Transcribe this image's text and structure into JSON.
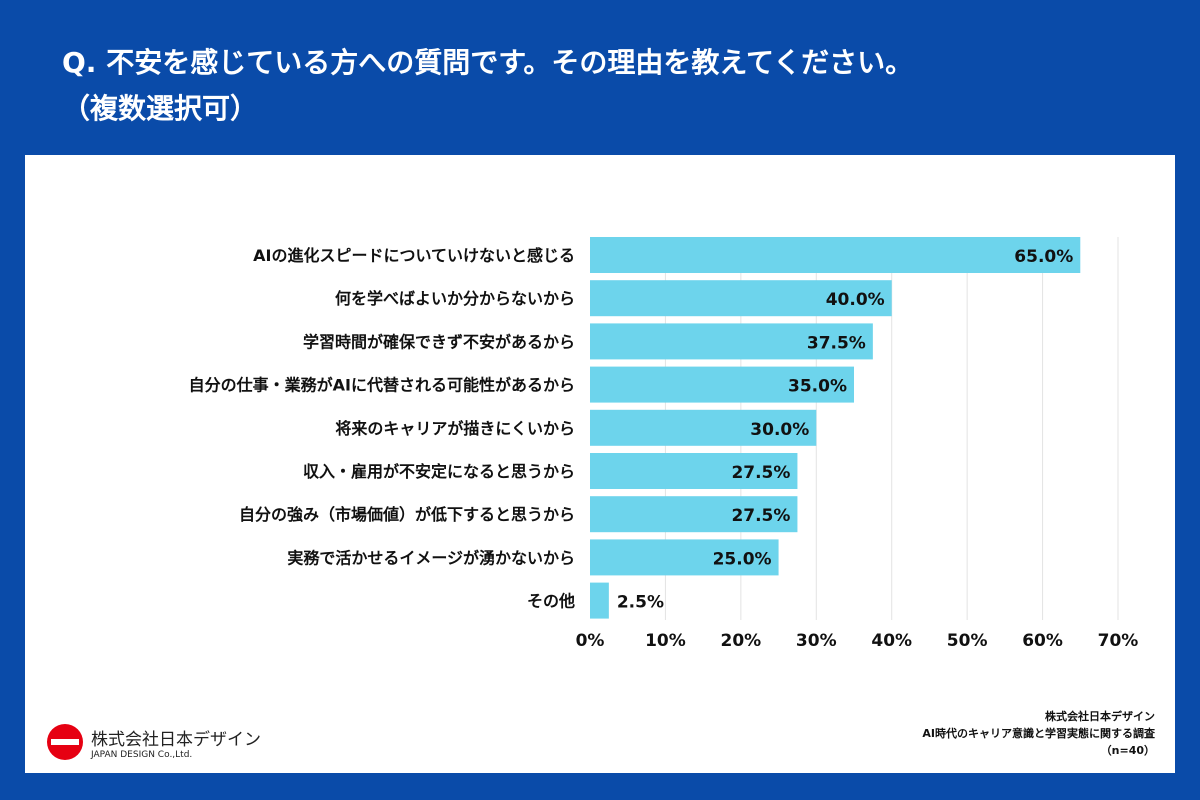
{
  "title_line1": "Q. 不安を感じている方への質問です。その理由を教えてください。",
  "title_line2": "（複数選択可）",
  "chart_data": {
    "type": "bar",
    "orientation": "horizontal",
    "categories": [
      "AIの進化スピードについていけないと感じる",
      "何を学べばよいか分からないから",
      "学習時間が確保できず不安があるから",
      "自分の仕事・業務がAIに代替される可能性があるから",
      "将来のキャリアが描きにくいから",
      "収入・雇用が不安定になると思うから",
      "自分の強み（市場価値）が低下すると思うから",
      "実務で活かせるイメージが湧かないから",
      "その他"
    ],
    "values": [
      65.0,
      40.0,
      37.5,
      35.0,
      30.0,
      27.5,
      27.5,
      25.0,
      2.5
    ],
    "data_labels": [
      "65.0%",
      "40.0%",
      "37.5%",
      "35.0%",
      "30.0%",
      "27.5%",
      "27.5%",
      "25.0%",
      "2.5%"
    ],
    "xlim": [
      0,
      70
    ],
    "xticks": [
      "0%",
      "10%",
      "20%",
      "30%",
      "40%",
      "50%",
      "60%",
      "70%"
    ],
    "grid": true,
    "bar_color": "#6dd4ec"
  },
  "logo": {
    "name": "株式会社日本デザイン",
    "sub": "JAPAN DESIGN Co.,Ltd.",
    "color": "#e60012"
  },
  "source": {
    "line1": "株式会社日本デザイン",
    "line2": "AI時代のキャリア意識と学習実態に関する調査",
    "line3": "（n=40）"
  }
}
